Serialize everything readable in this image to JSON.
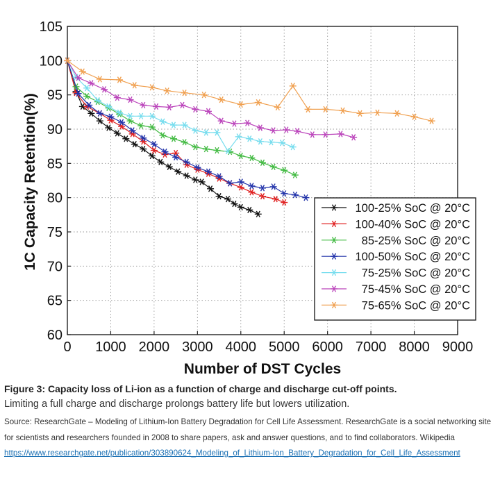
{
  "chart_data": {
    "type": "line",
    "xlabel": "Number of DST Cycles",
    "ylabel": "1C Capacity Retention(%)",
    "xlim": [
      0,
      9000
    ],
    "ylim": [
      60,
      105
    ],
    "xticks": [
      0,
      1000,
      2000,
      3000,
      4000,
      5000,
      6000,
      7000,
      8000,
      9000
    ],
    "yticks": [
      60,
      65,
      70,
      75,
      80,
      85,
      90,
      95,
      100,
      105
    ],
    "grid": true,
    "legend_position": "lower-right",
    "series": [
      {
        "name": "100-25% SoC @ 20°C",
        "color": "#111111",
        "x": [
          0,
          200,
          350,
          550,
          750,
          950,
          1150,
          1350,
          1550,
          1750,
          1950,
          2150,
          2350,
          2550,
          2750,
          2950,
          3100,
          3300,
          3500,
          3700,
          3850,
          4000,
          4200,
          4400
        ],
        "y": [
          100,
          95.5,
          93.3,
          92.3,
          91.2,
          90.2,
          89.4,
          88.6,
          87.8,
          87.1,
          86.1,
          85.2,
          84.5,
          83.8,
          83.2,
          82.6,
          82.3,
          81.3,
          80.2,
          79.8,
          79.1,
          78.6,
          78.2,
          77.6
        ]
      },
      {
        "name": "100-40% SoC @ 20°C",
        "color": "#e02020",
        "x": [
          0,
          200,
          450,
          750,
          1000,
          1250,
          1500,
          1750,
          2000,
          2250,
          2500,
          2750,
          3000,
          3250,
          3500,
          3750,
          4000,
          4250,
          4500,
          4800,
          5000
        ],
        "y": [
          100,
          95.3,
          93.3,
          92.3,
          91.3,
          90.4,
          89.3,
          88.2,
          86.9,
          86.3,
          86.5,
          84.8,
          84.1,
          83.5,
          82.8,
          82.1,
          81.5,
          80.8,
          80.2,
          79.8,
          79.3
        ]
      },
      {
        "name": "85-25% SoC @ 20°C",
        "color": "#44bb44",
        "x": [
          0,
          200,
          450,
          700,
          950,
          1200,
          1450,
          1700,
          1950,
          2200,
          2450,
          2700,
          2950,
          3200,
          3450,
          3750,
          4000,
          4250,
          4500,
          4750,
          5000,
          5250
        ],
        "y": [
          100,
          96.2,
          94.8,
          94.0,
          93.1,
          92.2,
          91.2,
          90.5,
          90.3,
          89.1,
          88.6,
          88.1,
          87.4,
          87.1,
          86.9,
          86.7,
          86.1,
          85.8,
          85.1,
          84.5,
          84.0,
          83.3
        ]
      },
      {
        "name": "100-50% SoC @ 20°C",
        "color": "#2233aa",
        "x": [
          0,
          250,
          500,
          750,
          1000,
          1250,
          1500,
          1750,
          2000,
          2250,
          2500,
          2750,
          3000,
          3250,
          3500,
          3750,
          4000,
          4250,
          4500,
          4750,
          5000,
          5250,
          5500
        ],
        "y": [
          100,
          95.2,
          93.5,
          92.3,
          91.8,
          91.0,
          89.8,
          88.7,
          87.8,
          86.7,
          85.9,
          85.2,
          84.4,
          83.8,
          83.1,
          82.1,
          82.3,
          81.7,
          81.4,
          81.6,
          80.6,
          80.4,
          80.0
        ]
      },
      {
        "name": "75-25% SoC @ 20°C",
        "color": "#77ddee",
        "x": [
          0,
          200,
          450,
          700,
          950,
          1200,
          1450,
          1700,
          1950,
          2200,
          2450,
          2700,
          2950,
          3200,
          3450,
          3700,
          3950,
          4200,
          4450,
          4700,
          4950,
          5200
        ],
        "y": [
          100,
          97.6,
          96.0,
          94.2,
          93.3,
          92.4,
          91.9,
          91.9,
          91.9,
          91.1,
          90.6,
          90.6,
          89.8,
          89.5,
          89.5,
          86.8,
          88.9,
          88.6,
          88.2,
          88.1,
          88.0,
          87.4
        ]
      },
      {
        "name": "75-45% SoC @ 20°C",
        "color": "#bb44bb",
        "x": [
          0,
          250,
          550,
          850,
          1150,
          1450,
          1750,
          2050,
          2350,
          2650,
          2950,
          3250,
          3550,
          3850,
          4150,
          4450,
          4750,
          5050,
          5300,
          5650,
          5950,
          6300,
          6600
        ],
        "y": [
          100,
          97.5,
          96.7,
          95.8,
          94.6,
          94.3,
          93.5,
          93.3,
          93.2,
          93.5,
          92.9,
          92.6,
          91.2,
          90.8,
          90.9,
          90.2,
          89.8,
          89.9,
          89.7,
          89.2,
          89.2,
          89.3,
          88.8
        ]
      },
      {
        "name": "75-65% SoC @ 20°C",
        "color": "#f0a050",
        "x": [
          0,
          350,
          750,
          1200,
          1550,
          1950,
          2300,
          2700,
          3150,
          3550,
          4000,
          4400,
          4850,
          5200,
          5550,
          5950,
          6350,
          6750,
          7150,
          7600,
          8000,
          8400
        ],
        "y": [
          100,
          98.4,
          97.3,
          97.2,
          96.4,
          96.1,
          95.6,
          95.3,
          95.0,
          94.3,
          93.6,
          93.9,
          93.2,
          96.3,
          92.9,
          92.9,
          92.7,
          92.3,
          92.4,
          92.3,
          91.8,
          91.2
        ]
      }
    ]
  },
  "caption": {
    "title": "Figure 3: Capacity loss of Li-ion as a function of charge and discharge cut-off points.",
    "subtitle": "Limiting a full charge and discharge prolongs battery life but lowers utilization.",
    "source_text": "Source: ResearchGate – Modeling of Lithium-Ion Battery Degradation for Cell Life Assessment.  ResearchGate is a social networking site for scientists and researchers founded in 2008 to share papers, ask and answer questions, and to find collaborators. Wikipedia ",
    "link_text": "https://www.researchgate.net/publication/303890624_Modeling_of_Lithium-Ion_Battery_Degradation_for_Cell_Life_Assessment"
  }
}
